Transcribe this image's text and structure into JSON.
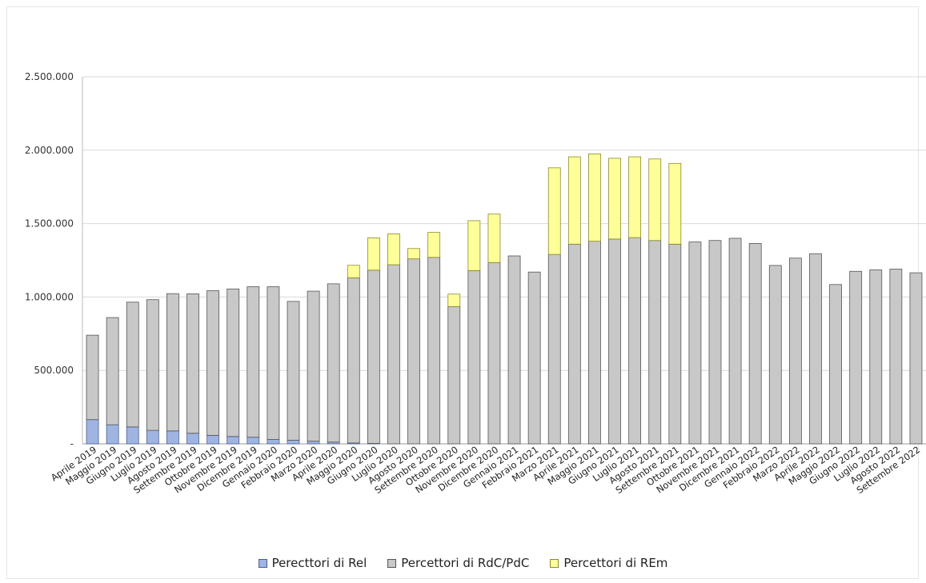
{
  "chart_data": {
    "type": "bar",
    "stacked": true,
    "title": "",
    "xlabel": "",
    "ylabel": "",
    "ylim": [
      0,
      2500000
    ],
    "yticks": [
      0,
      500000,
      1000000,
      1500000,
      2000000,
      2500000
    ],
    "ytick_labels": [
      "-",
      "500.000",
      "1.000.000",
      "1.500.000",
      "2.000.000",
      "2.500.000"
    ],
    "grid": true,
    "legend_position": "bottom",
    "categories": [
      "Aprile 2019",
      "Maggio 2019",
      "Giugno 2019",
      "Luglio 2019",
      "Agosto 2019",
      "Settembre 2019",
      "Ottobre 2019",
      "Novembre 2019",
      "Dicembre 2019",
      "Gennaio 2020",
      "Febbraio 2020",
      "Marzo 2020",
      "Aprile 2020",
      "Maggio 2020",
      "Giugno 2020",
      "Luglio 2020",
      "Agosto 2020",
      "Settembre 2020",
      "Ottobre 2020",
      "Novembre 2020",
      "Dicembre 2020",
      "Gennaio 2021",
      "Febbraio 2021",
      "Marzo 2021",
      "Aprile 2021",
      "Maggio 2021",
      "Giugno 2021",
      "Luglio 2021",
      "Agosto 2021",
      "Settembre 2021",
      "Ottobre 2021",
      "Novembre 2021",
      "Dicembre 2021",
      "Gennaio 2022",
      "Febbraio 2022",
      "Marzo 2022",
      "Aprile 2022",
      "Maggio 2022",
      "Giugno 2022",
      "Luglio 2022",
      "Agosto 2022",
      "Settembre 2022"
    ],
    "series": [
      {
        "name": "Perecttori di Rel",
        "color": "#9fb4e0",
        "values": [
          165000,
          130000,
          115000,
          92000,
          88000,
          72000,
          58000,
          50000,
          45000,
          30000,
          25000,
          18000,
          12000,
          6000,
          3000,
          0,
          0,
          0,
          0,
          0,
          0,
          0,
          0,
          0,
          0,
          0,
          0,
          0,
          0,
          0,
          0,
          0,
          0,
          0,
          0,
          0,
          0,
          0,
          0,
          0,
          0,
          0
        ]
      },
      {
        "name": "Percettori di RdC/PdC",
        "color": "#c8c8c8",
        "values": [
          575000,
          730000,
          850000,
          890000,
          935000,
          950000,
          985000,
          1005000,
          1025000,
          1040000,
          945000,
          1022000,
          1078000,
          1125000,
          1180000,
          1220000,
          1260000,
          1270000,
          935000,
          1180000,
          1235000,
          1280000,
          1170000,
          1290000,
          1360000,
          1380000,
          1395000,
          1405000,
          1385000,
          1360000,
          1375000,
          1385000,
          1400000,
          1365000,
          1215000,
          1265000,
          1295000,
          1085000,
          1175000,
          1185000,
          1190000,
          1165000
        ]
      },
      {
        "name": "Percettori di REm",
        "color": "#ffff99",
        "values": [
          0,
          0,
          0,
          0,
          0,
          0,
          0,
          0,
          0,
          0,
          0,
          0,
          0,
          85000,
          220000,
          210000,
          70000,
          170000,
          85000,
          340000,
          330000,
          0,
          0,
          590000,
          595000,
          595000,
          550000,
          550000,
          555000,
          550000,
          0,
          0,
          0,
          0,
          0,
          0,
          0,
          0,
          0,
          0,
          0,
          0
        ]
      }
    ]
  }
}
